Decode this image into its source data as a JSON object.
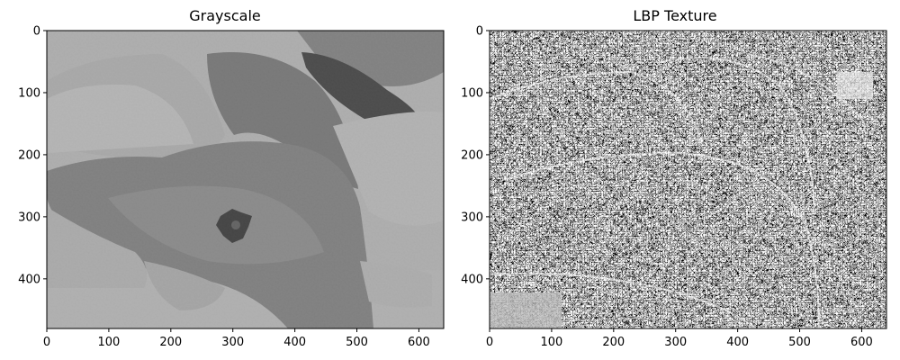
{
  "figure": {
    "panels": [
      {
        "title": "Grayscale",
        "xticks": [
          "0",
          "100",
          "200",
          "300",
          "400",
          "500",
          "600"
        ],
        "yticks": [
          "0",
          "100",
          "200",
          "300",
          "400"
        ],
        "xlim": [
          0,
          640
        ],
        "ylim": [
          480,
          0
        ],
        "image": "grayscale photo of peeled orange rind on a light surface"
      },
      {
        "title": "LBP Texture",
        "xticks": [
          "0",
          "100",
          "200",
          "300",
          "400",
          "500",
          "600"
        ],
        "yticks": [
          "0",
          "100",
          "200",
          "300",
          "400"
        ],
        "xlim": [
          0,
          640
        ],
        "ylim": [
          480,
          0
        ],
        "image": "local binary pattern texture map, high-contrast black/white/gray speckle"
      }
    ]
  },
  "chart_data": [
    {
      "type": "image",
      "title": "Grayscale",
      "xlabel": "",
      "ylabel": "",
      "xlim": [
        0,
        640
      ],
      "ylim": [
        480,
        0
      ],
      "xticks": [
        0,
        100,
        200,
        300,
        400,
        500,
        600
      ],
      "yticks": [
        0,
        100,
        200,
        300,
        400
      ],
      "colormap": "gray"
    },
    {
      "type": "image",
      "title": "LBP Texture",
      "xlabel": "",
      "ylabel": "",
      "xlim": [
        0,
        640
      ],
      "ylim": [
        480,
        0
      ],
      "xticks": [
        0,
        100,
        200,
        300,
        400,
        500,
        600
      ],
      "yticks": [
        0,
        100,
        200,
        300,
        400
      ],
      "colormap": "gray"
    }
  ]
}
